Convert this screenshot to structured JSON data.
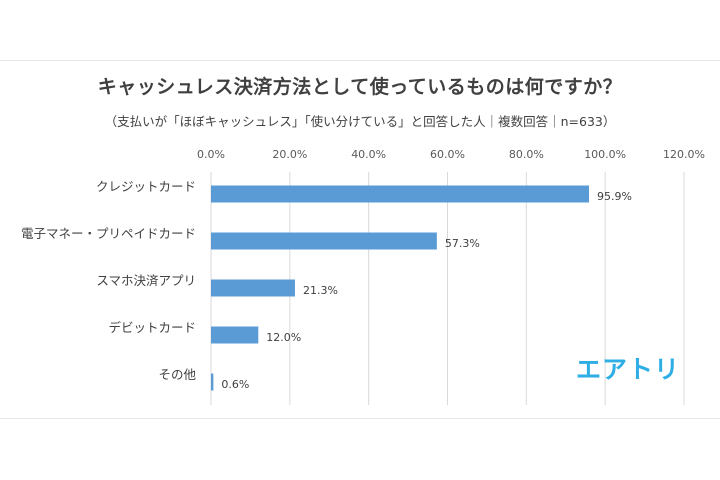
{
  "header": {
    "title": "キャッシュレス決済方法として使っているものは何ですか？",
    "subtitle": "（支払いが「ほぼキャッシュレス」「使い分けている」と回答した人｜複数回答｜n=633）"
  },
  "brand": {
    "logo_text": "エアトリ",
    "color": "#2eaee5"
  },
  "chart_data": {
    "type": "bar",
    "orientation": "horizontal",
    "categories": [
      "クレジットカード",
      "電子マネー・プリペイドカード",
      "スマホ決済アプリ",
      "デビットカード",
      "その他"
    ],
    "values": [
      95.9,
      57.3,
      21.3,
      12.0,
      0.6
    ],
    "value_labels": [
      "95.9%",
      "57.3%",
      "21.3%",
      "12.0%",
      "0.6%"
    ],
    "xlim": [
      0,
      120
    ],
    "x_ticks": [
      0,
      20,
      40,
      60,
      80,
      100,
      120
    ],
    "x_tick_labels": [
      "0.0%",
      "20.0%",
      "40.0%",
      "60.0%",
      "80.0%",
      "100.0%",
      "120.0%"
    ],
    "bar_color": "#5b9bd5",
    "grid": true,
    "legend": "none"
  }
}
